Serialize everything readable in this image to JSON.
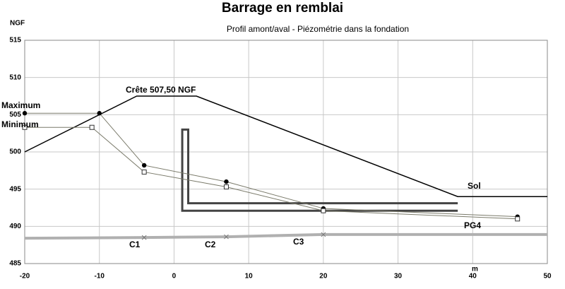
{
  "chart_data": {
    "type": "line",
    "title": "Barrage en remblai",
    "subtitle": "Profil amont/aval - Piézométrie dans la fondation",
    "y_label": "NGF",
    "x_label": "m",
    "xlim": [
      -20,
      50
    ],
    "xticks": [
      -20,
      -10,
      0,
      10,
      20,
      30,
      40,
      50
    ],
    "ylim": [
      485,
      515
    ],
    "yticks": [
      485,
      490,
      495,
      500,
      505,
      510,
      515
    ],
    "grid": true,
    "series": [
      {
        "color": "#000000",
        "marker": "none",
        "x": [
          -20,
          -5,
          3,
          38,
          50
        ],
        "values": [
          500,
          507.5,
          507.5,
          494,
          494
        ]
      },
      {
        "color": "#444444",
        "marker": "none",
        "x": [
          38,
          1.1,
          1.1,
          1.9,
          1.9,
          38
        ],
        "values": [
          492.1,
          492.1,
          503,
          503,
          493.1,
          493.1
        ]
      },
      {
        "color": "#b0b0b0",
        "marker": "x",
        "x": [
          -20,
          -4,
          7,
          20,
          50
        ],
        "values": [
          488.4,
          488.5,
          488.6,
          488.9,
          488.9
        ]
      },
      {
        "color": "#7a7a6a",
        "marker": "circle",
        "x": [
          -20,
          -10,
          -4,
          7,
          20,
          46
        ],
        "values": [
          505.2,
          505.2,
          498.2,
          496,
          492.4,
          491.3
        ]
      },
      {
        "color": "#7a7a6a",
        "marker": "square",
        "x": [
          -20,
          -11,
          -4,
          7,
          20,
          46
        ],
        "values": [
          503.3,
          503.3,
          497.3,
          495.3,
          492.1,
          491
        ]
      }
    ],
    "annotations": [
      "Maximum",
      "Minimum",
      "Crête 507,50  NGF",
      "Sol",
      "PG4",
      "C1",
      "C2",
      "C3"
    ]
  }
}
